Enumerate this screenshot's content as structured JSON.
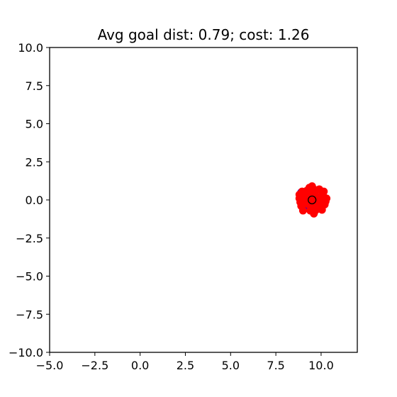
{
  "chart_data": {
    "type": "scatter",
    "title": "Avg goal dist: 0.79; cost: 1.26",
    "xlabel": "",
    "ylabel": "",
    "xlim": [
      -5.0,
      12.0
    ],
    "ylim": [
      -10.0,
      10.0
    ],
    "xticks": [
      "−5.0",
      "−2.5",
      "0.0",
      "2.5",
      "5.0",
      "7.5",
      "10.0"
    ],
    "xtick_values": [
      -5.0,
      -2.5,
      0.0,
      2.5,
      5.0,
      7.5,
      10.0
    ],
    "yticks": [
      "10.0",
      "7.5",
      "5.0",
      "2.5",
      "0.0",
      "−2.5",
      "−5.0",
      "−7.5",
      "−10.0"
    ],
    "ytick_values": [
      10.0,
      7.5,
      5.0,
      2.5,
      0.0,
      -2.5,
      -5.0,
      -7.5,
      -10.0
    ],
    "grid": false,
    "goal": {
      "x": 9.5,
      "y": 0.0,
      "marker": "open-circle",
      "color": "#000000"
    },
    "series": [
      {
        "color": "#0000ff",
        "points": [
          [
            8.9,
            0.5
          ],
          [
            9.1,
            0.2
          ],
          [
            9.0,
            -0.3
          ],
          [
            9.3,
            0.6
          ],
          [
            9.2,
            -0.1
          ],
          [
            8.85,
            0.05
          ],
          [
            9.15,
            -0.55
          ],
          [
            9.4,
            0.35
          ],
          [
            9.0,
            0.05
          ],
          [
            9.25,
            -0.4
          ]
        ]
      },
      {
        "color": "#ff0000",
        "points": [
          [
            9.5,
            0.0
          ],
          [
            9.7,
            0.3
          ],
          [
            9.3,
            -0.3
          ],
          [
            9.9,
            -0.1
          ],
          [
            9.1,
            0.2
          ],
          [
            9.6,
            0.7
          ],
          [
            9.4,
            -0.7
          ],
          [
            10.1,
            0.4
          ],
          [
            8.9,
            -0.4
          ],
          [
            9.8,
            -0.6
          ],
          [
            9.2,
            0.6
          ],
          [
            10.2,
            -0.3
          ],
          [
            8.8,
            0.1
          ],
          [
            9.5,
            0.9
          ],
          [
            9.6,
            -0.9
          ],
          [
            10.3,
            0.1
          ],
          [
            9.0,
            -0.7
          ],
          [
            9.9,
            0.7
          ],
          [
            8.95,
            0.55
          ],
          [
            10.05,
            -0.65
          ],
          [
            9.45,
            0.45
          ],
          [
            9.55,
            -0.45
          ],
          [
            9.75,
            0.05
          ],
          [
            9.25,
            -0.05
          ],
          [
            10.15,
            0.55
          ],
          [
            8.85,
            -0.15
          ],
          [
            9.35,
            0.8
          ],
          [
            9.65,
            -0.75
          ],
          [
            10.0,
            0.2
          ],
          [
            9.05,
            -0.25
          ],
          [
            9.85,
            -0.35
          ],
          [
            9.15,
            0.4
          ],
          [
            10.25,
            -0.1
          ],
          [
            8.8,
            0.35
          ],
          [
            9.5,
            -0.55
          ],
          [
            9.5,
            0.6
          ],
          [
            9.7,
            -0.2
          ],
          [
            9.3,
            0.15
          ]
        ]
      }
    ]
  }
}
